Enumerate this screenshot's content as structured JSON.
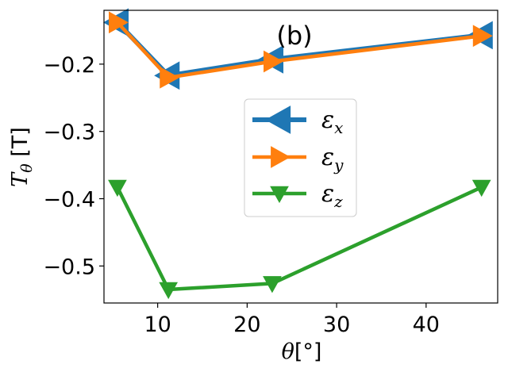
{
  "chart_data": {
    "type": "line",
    "annotation": "(b)",
    "xlabel": {
      "symbol": "θ",
      "unit": "[°]"
    },
    "ylabel": {
      "symbol": "T",
      "sub": "θ",
      "unit": " [T]"
    },
    "xlim": [
      4,
      48
    ],
    "ylim": [
      -0.555,
      -0.12
    ],
    "xticks": [
      10,
      20,
      30,
      40
    ],
    "xtick_labels": [
      "10",
      "20",
      "30",
      "40"
    ],
    "yticks": [
      -0.2,
      -0.3,
      -0.4,
      -0.5
    ],
    "ytick_labels": [
      "−0.2",
      "−0.3",
      "−0.4",
      "−0.5"
    ],
    "x": [
      5.5,
      11.2,
      22.8,
      46.2
    ],
    "series": [
      {
        "name": "εx",
        "symbol": "ε",
        "sub": "x",
        "marker": "triangle-left",
        "color": "#1f77b4",
        "values": [
          -0.138,
          -0.217,
          -0.193,
          -0.157
        ]
      },
      {
        "name": "εy",
        "symbol": "ε",
        "sub": "y",
        "marker": "triangle-right",
        "color": "#ff7f0e",
        "values": [
          -0.138,
          -0.22,
          -0.196,
          -0.158
        ]
      },
      {
        "name": "εz",
        "symbol": "ε",
        "sub": "z",
        "marker": "triangle-down",
        "color": "#2ca02c",
        "values": [
          -0.383,
          -0.535,
          -0.526,
          -0.383
        ]
      }
    ],
    "legend_position": "center",
    "grid": false
  }
}
